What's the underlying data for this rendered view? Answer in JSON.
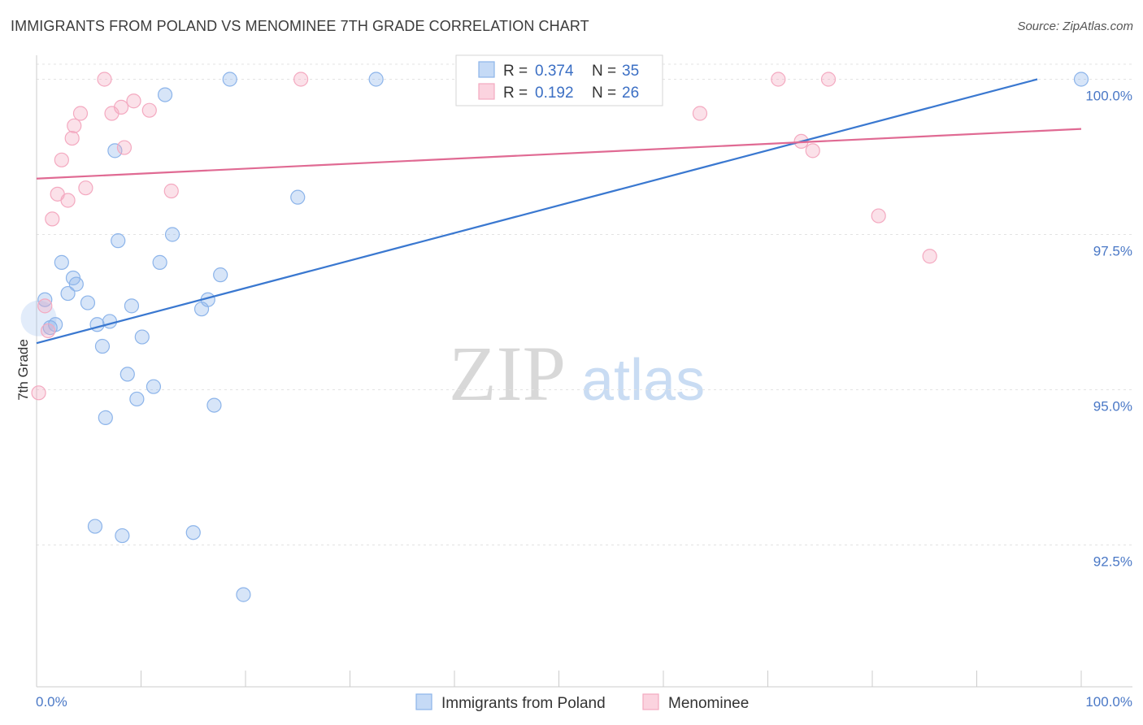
{
  "title": "IMMIGRANTS FROM POLAND VS MENOMINEE 7TH GRADE CORRELATION CHART",
  "source": "Source: ZipAtlas.com",
  "watermark": {
    "zip": "ZIP",
    "atlas": "atlas"
  },
  "chart_data": {
    "type": "scatter",
    "title": "IMMIGRANTS FROM POLAND VS MENOMINEE 7TH GRADE CORRELATION CHART",
    "xlabel": "",
    "ylabel": "7th Grade",
    "xlim": [
      0,
      100
    ],
    "ylim": [
      90.0,
      100.4
    ],
    "x_tick_labels": [
      "0.0%",
      "100.0%"
    ],
    "y_ticks": [
      92.5,
      95.0,
      97.5,
      100.0
    ],
    "y_tick_labels": [
      "92.5%",
      "95.0%",
      "97.5%",
      "100.0%"
    ],
    "grid": "horizontal dashed",
    "legend_position": "top-center",
    "series": [
      {
        "name": "Immigrants from Poland",
        "color": "#8cb4ea",
        "line_color": "#3a78d0",
        "R": "0.374",
        "N": "35",
        "trend": [
          [
            0,
            95.75
          ],
          [
            95.8,
            100.0
          ]
        ],
        "points": [
          [
            0.8,
            96.45
          ],
          [
            1.3,
            96.0
          ],
          [
            1.8,
            96.05
          ],
          [
            2.4,
            97.05
          ],
          [
            3.0,
            96.55
          ],
          [
            3.5,
            96.8
          ],
          [
            3.8,
            96.7
          ],
          [
            4.9,
            96.4
          ],
          [
            5.6,
            92.8
          ],
          [
            5.8,
            96.05
          ],
          [
            6.3,
            95.7
          ],
          [
            6.6,
            94.55
          ],
          [
            7.0,
            96.1
          ],
          [
            7.5,
            98.85
          ],
          [
            7.8,
            97.4
          ],
          [
            8.2,
            92.65
          ],
          [
            8.7,
            95.25
          ],
          [
            9.1,
            96.35
          ],
          [
            9.6,
            94.85
          ],
          [
            10.1,
            95.85
          ],
          [
            11.2,
            95.05
          ],
          [
            11.8,
            97.05
          ],
          [
            12.3,
            99.75
          ],
          [
            13.0,
            97.5
          ],
          [
            15.0,
            92.7
          ],
          [
            15.8,
            96.3
          ],
          [
            16.4,
            96.45
          ],
          [
            17.0,
            94.75
          ],
          [
            17.6,
            96.85
          ],
          [
            18.5,
            100.0
          ],
          [
            19.8,
            91.7
          ],
          [
            25.0,
            98.1
          ],
          [
            32.5,
            100.0
          ],
          [
            100.0,
            100.0
          ],
          [
            0.2,
            96.15
          ]
        ]
      },
      {
        "name": "Menominee",
        "color": "#f4a9c0",
        "line_color": "#e06a93",
        "R": "0.192",
        "N": "26",
        "trend": [
          [
            0,
            98.4
          ],
          [
            100,
            99.2
          ]
        ],
        "points": [
          [
            0.2,
            94.95
          ],
          [
            0.8,
            96.35
          ],
          [
            1.1,
            95.95
          ],
          [
            1.5,
            97.75
          ],
          [
            2.0,
            98.15
          ],
          [
            2.4,
            98.7
          ],
          [
            3.0,
            98.05
          ],
          [
            3.4,
            99.05
          ],
          [
            3.6,
            99.25
          ],
          [
            4.2,
            99.45
          ],
          [
            4.7,
            98.25
          ],
          [
            6.5,
            100.0
          ],
          [
            7.2,
            99.45
          ],
          [
            8.1,
            99.55
          ],
          [
            8.4,
            98.9
          ],
          [
            9.3,
            99.65
          ],
          [
            10.8,
            99.5
          ],
          [
            12.9,
            98.2
          ],
          [
            25.3,
            100.0
          ],
          [
            63.5,
            99.45
          ],
          [
            71.0,
            100.0
          ],
          [
            73.2,
            99.0
          ],
          [
            74.3,
            98.85
          ],
          [
            75.8,
            100.0
          ],
          [
            80.6,
            97.8
          ],
          [
            85.5,
            97.15
          ]
        ]
      }
    ]
  },
  "legend": {
    "r_label": "R =",
    "n_label": "N ="
  }
}
